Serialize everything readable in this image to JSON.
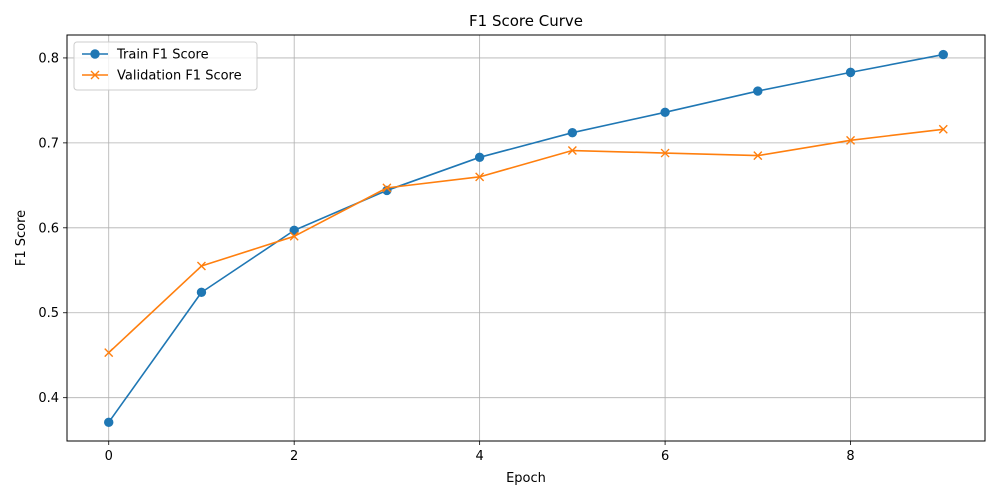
{
  "chart_data": {
    "type": "line",
    "title": "F1 Score Curve",
    "xlabel": "Epoch",
    "ylabel": "F1 Score",
    "xlim": [
      -0.45,
      9.45
    ],
    "ylim": [
      0.349,
      0.827
    ],
    "xticks": [
      0,
      2,
      4,
      6,
      8
    ],
    "yticks": [
      0.4,
      0.5,
      0.6,
      0.7,
      0.8
    ],
    "xtick_labels": [
      "0",
      "2",
      "4",
      "6",
      "8"
    ],
    "ytick_labels": [
      "0.4",
      "0.5",
      "0.6",
      "0.7",
      "0.8"
    ],
    "grid": true,
    "legend_position": "upper left",
    "x": [
      0,
      1,
      2,
      3,
      4,
      5,
      6,
      7,
      8,
      9
    ],
    "series": [
      {
        "name": "Train F1 Score",
        "color": "#1f77b4",
        "marker": "circle",
        "values": [
          0.371,
          0.524,
          0.597,
          0.644,
          0.683,
          0.712,
          0.736,
          0.761,
          0.783,
          0.804
        ]
      },
      {
        "name": "Validation F1 Score",
        "color": "#ff7f0e",
        "marker": "x",
        "values": [
          0.453,
          0.555,
          0.59,
          0.647,
          0.66,
          0.691,
          0.688,
          0.685,
          0.703,
          0.716
        ]
      }
    ]
  }
}
